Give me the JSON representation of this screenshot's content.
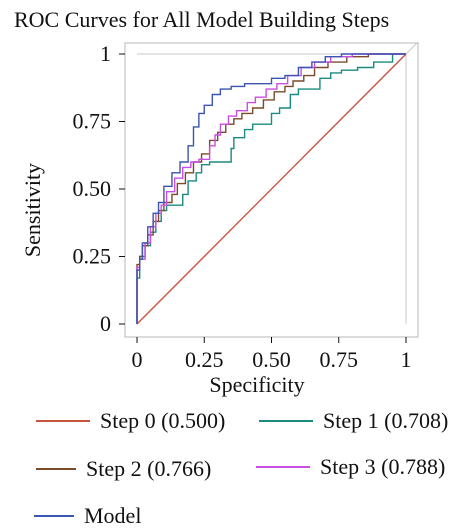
{
  "chart_data": {
    "type": "line",
    "title": "ROC Curves for All Model Building Steps",
    "xlabel": "Specificity",
    "ylabel": "Sensitivity",
    "xlim": [
      0,
      1
    ],
    "ylim": [
      0,
      1
    ],
    "x_ticks": [
      "0",
      "0.25",
      "0.50",
      "0.75",
      "1"
    ],
    "y_ticks": [
      "0",
      "0.25",
      "0.50",
      "0.75",
      "1"
    ],
    "grid": false,
    "legend_position": "bottom",
    "series": [
      {
        "name": "Step 0 (0.500)",
        "color": "#c8533f",
        "points": [
          [
            0,
            0
          ],
          [
            1,
            1
          ]
        ]
      },
      {
        "name": "Step 1 (0.708)",
        "color": "#1a8a82",
        "points": [
          [
            0,
            0
          ],
          [
            0,
            0.13
          ],
          [
            0.01,
            0.17
          ],
          [
            0.01,
            0.22
          ],
          [
            0.03,
            0.25
          ],
          [
            0.05,
            0.29
          ],
          [
            0.07,
            0.34
          ],
          [
            0.09,
            0.38
          ],
          [
            0.11,
            0.42
          ],
          [
            0.14,
            0.44
          ],
          [
            0.17,
            0.44
          ],
          [
            0.19,
            0.48
          ],
          [
            0.22,
            0.53
          ],
          [
            0.24,
            0.56
          ],
          [
            0.27,
            0.59
          ],
          [
            0.3,
            0.6
          ],
          [
            0.35,
            0.6
          ],
          [
            0.36,
            0.65
          ],
          [
            0.4,
            0.69
          ],
          [
            0.43,
            0.72
          ],
          [
            0.46,
            0.74
          ],
          [
            0.5,
            0.74
          ],
          [
            0.53,
            0.78
          ],
          [
            0.57,
            0.8
          ],
          [
            0.6,
            0.85
          ],
          [
            0.64,
            0.87
          ],
          [
            0.68,
            0.87
          ],
          [
            0.72,
            0.91
          ],
          [
            0.76,
            0.93
          ],
          [
            0.82,
            0.94
          ],
          [
            0.88,
            0.95
          ],
          [
            0.95,
            0.97
          ],
          [
            1,
            1
          ]
        ]
      },
      {
        "name": "Step 2 (0.766)",
        "color": "#7a4a2a",
        "points": [
          [
            0,
            0
          ],
          [
            0,
            0.18
          ],
          [
            0.01,
            0.22
          ],
          [
            0.02,
            0.25
          ],
          [
            0.04,
            0.29
          ],
          [
            0.06,
            0.33
          ],
          [
            0.08,
            0.38
          ],
          [
            0.1,
            0.42
          ],
          [
            0.13,
            0.45
          ],
          [
            0.15,
            0.48
          ],
          [
            0.18,
            0.52
          ],
          [
            0.21,
            0.56
          ],
          [
            0.24,
            0.6
          ],
          [
            0.27,
            0.63
          ],
          [
            0.3,
            0.68
          ],
          [
            0.33,
            0.71
          ],
          [
            0.36,
            0.74
          ],
          [
            0.39,
            0.76
          ],
          [
            0.43,
            0.78
          ],
          [
            0.47,
            0.8
          ],
          [
            0.51,
            0.83
          ],
          [
            0.55,
            0.86
          ],
          [
            0.58,
            0.88
          ],
          [
            0.62,
            0.9
          ],
          [
            0.66,
            0.92
          ],
          [
            0.71,
            0.95
          ],
          [
            0.78,
            0.97
          ],
          [
            0.86,
            0.99
          ],
          [
            0.94,
            1
          ],
          [
            1,
            1
          ]
        ]
      },
      {
        "name": "Step 3 (0.788)",
        "color": "#c94ee2",
        "points": [
          [
            0,
            0
          ],
          [
            0,
            0.16
          ],
          [
            0.01,
            0.21
          ],
          [
            0.03,
            0.24
          ],
          [
            0.05,
            0.3
          ],
          [
            0.07,
            0.36
          ],
          [
            0.09,
            0.41
          ],
          [
            0.11,
            0.44
          ],
          [
            0.14,
            0.49
          ],
          [
            0.17,
            0.54
          ],
          [
            0.2,
            0.58
          ],
          [
            0.23,
            0.6
          ],
          [
            0.27,
            0.61
          ],
          [
            0.29,
            0.66
          ],
          [
            0.31,
            0.7
          ],
          [
            0.34,
            0.74
          ],
          [
            0.37,
            0.77
          ],
          [
            0.41,
            0.79
          ],
          [
            0.44,
            0.82
          ],
          [
            0.48,
            0.84
          ],
          [
            0.52,
            0.87
          ],
          [
            0.56,
            0.89
          ],
          [
            0.61,
            0.92
          ],
          [
            0.66,
            0.95
          ],
          [
            0.72,
            0.97
          ],
          [
            0.8,
            0.99
          ],
          [
            0.88,
            1
          ],
          [
            1,
            1
          ]
        ]
      },
      {
        "name": "Model",
        "color": "#3a56b0",
        "points": [
          [
            0,
            0
          ],
          [
            0,
            0.14
          ],
          [
            0.01,
            0.2
          ],
          [
            0.02,
            0.24
          ],
          [
            0.04,
            0.3
          ],
          [
            0.06,
            0.36
          ],
          [
            0.08,
            0.41
          ],
          [
            0.1,
            0.45
          ],
          [
            0.13,
            0.51
          ],
          [
            0.16,
            0.56
          ],
          [
            0.19,
            0.6
          ],
          [
            0.21,
            0.66
          ],
          [
            0.23,
            0.73
          ],
          [
            0.25,
            0.78
          ],
          [
            0.28,
            0.81
          ],
          [
            0.31,
            0.85
          ],
          [
            0.35,
            0.87
          ],
          [
            0.4,
            0.88
          ],
          [
            0.45,
            0.89
          ],
          [
            0.5,
            0.89
          ],
          [
            0.55,
            0.91
          ],
          [
            0.6,
            0.92
          ],
          [
            0.65,
            0.95
          ],
          [
            0.7,
            0.97
          ],
          [
            0.76,
            0.99
          ],
          [
            0.85,
            1
          ],
          [
            1,
            1
          ]
        ]
      }
    ]
  }
}
